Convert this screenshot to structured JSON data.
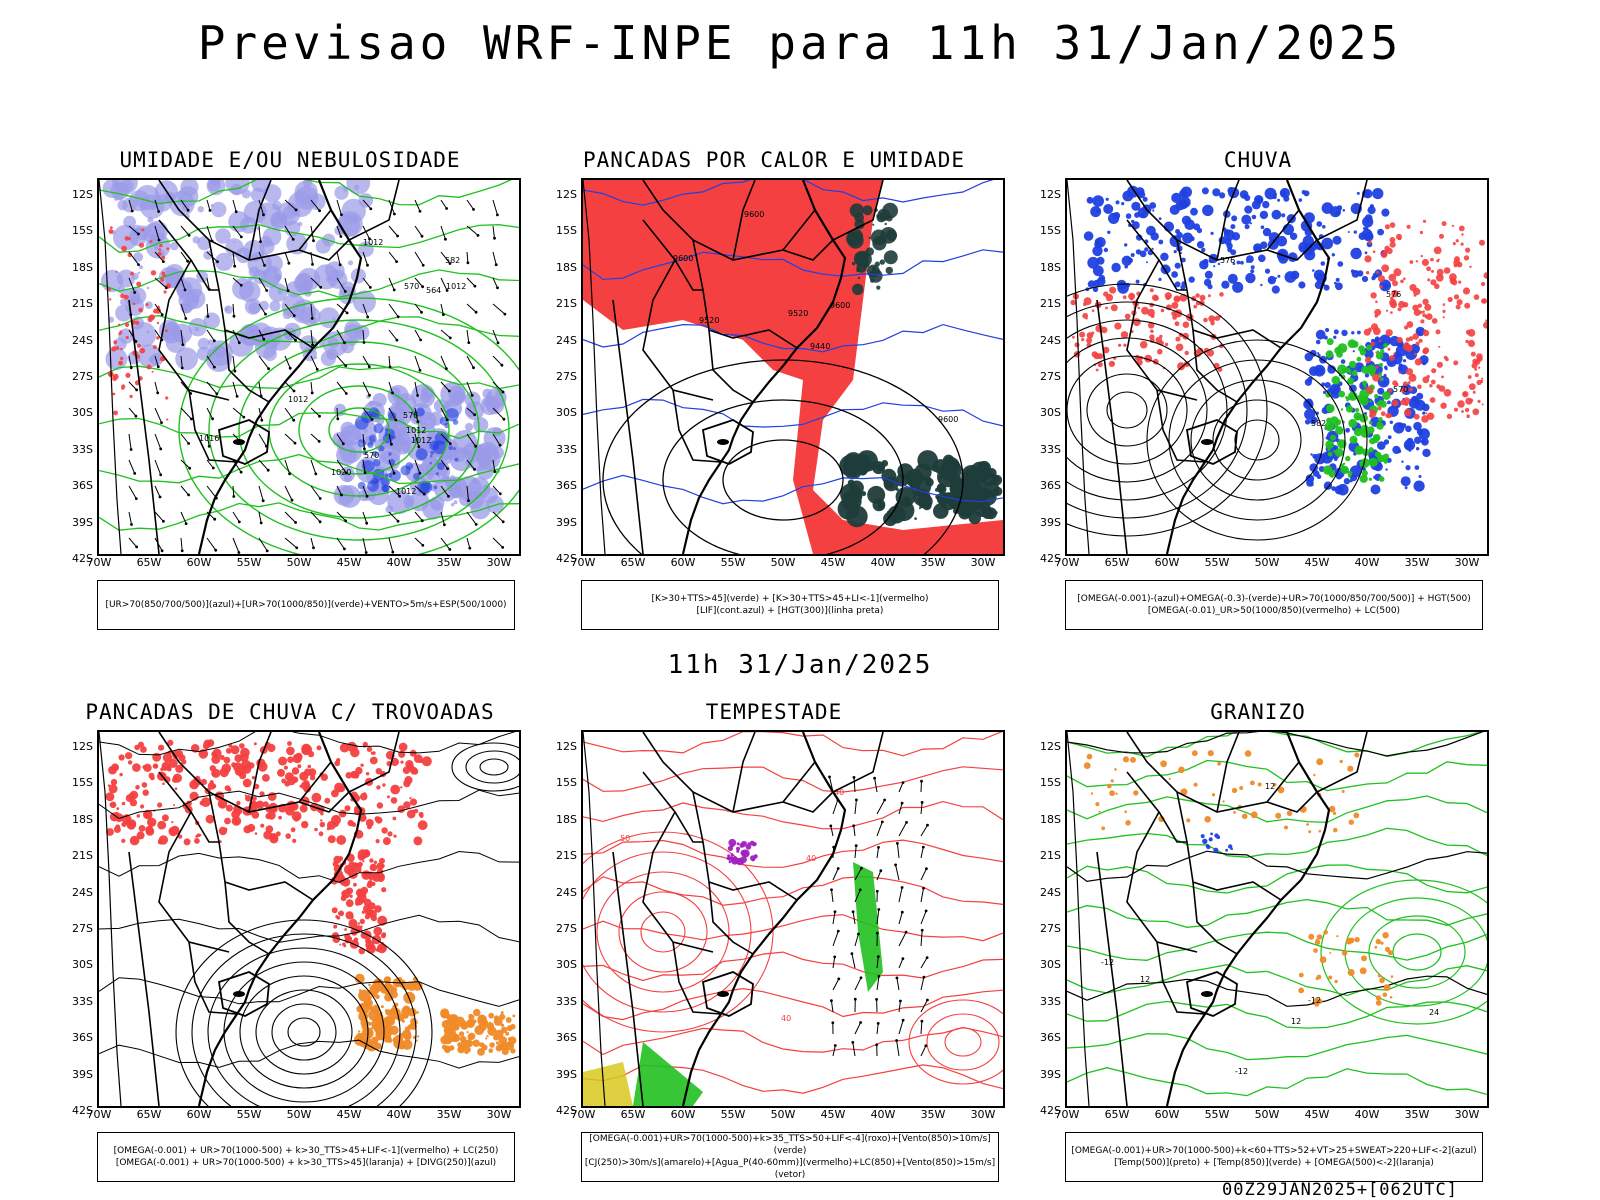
{
  "header": {
    "title": "Previsao WRF-INPE  para 11h 31/Jan/2025",
    "subtitle": "11h 31/Jan/2025",
    "footer": "00Z29JAN2025+[062UTC]"
  },
  "axes": {
    "y_ticks": [
      "12S",
      "15S",
      "18S",
      "21S",
      "24S",
      "27S",
      "30S",
      "33S",
      "36S",
      "39S",
      "42S"
    ],
    "x_ticks": [
      "70W",
      "65W",
      "60W",
      "55W",
      "50W",
      "45W",
      "40W",
      "35W",
      "30W"
    ]
  },
  "panels": [
    {
      "id": "umidade",
      "title": "UMIDADE E/OU NEBULOSIDADE",
      "legend": [
        "[UR>70(850/700/500)](azul)+[UR>70(1000/850)](verde)+VENTO>5m/s+ESP(500/1000)"
      ],
      "contour_labels": [
        "1012",
        "1012",
        "1012",
        "1012",
        "1012",
        "1012",
        "1016",
        "1020",
        "570",
        "570",
        "576",
        "582",
        "564"
      ]
    },
    {
      "id": "pancadas-calor",
      "title": "PANCADAS POR CALOR E UMIDADE",
      "legend": [
        "[K>30+TTS>45](verde) + [K>30+TTS>45+LI<-1](vermelho)",
        "[LIF](cont.azul) + [HGT(300)](linha preta)"
      ],
      "contour_labels": [
        "9600",
        "9600",
        "9600",
        "9520",
        "9440",
        "9520",
        "9600"
      ]
    },
    {
      "id": "chuva",
      "title": "CHUVA",
      "legend": [
        "[OMEGA(-0.001)-(azul)+OMEGA(-0.3)-(verde)+UR>70(1000/850/700/500)] + HGT(500)",
        "[OMEGA(-0.01)_UR>50(1000/850)(vermelho) + LC(500)"
      ],
      "contour_labels": [
        "582",
        "576",
        "576",
        "570"
      ]
    },
    {
      "id": "pancadas-trovoadas",
      "title": "PANCADAS DE CHUVA C/ TROVOADAS",
      "legend": [
        "[OMEGA(-0.001) + UR>70(1000-500) + k>30_TTS>45+LIF<-1](vermelho) + LC(250)",
        "[OMEGA(-0.001) + UR>70(1000-500) + k>30_TTS>45](laranja) + [DIVG(250)](azul)"
      ],
      "contour_labels": []
    },
    {
      "id": "tempestade",
      "title": "TEMPESTADE",
      "legend": [
        "[OMEGA(-0.001)+UR>70(1000-500)+k>35_TTS>50+LIF<-4](roxo)+[Vento(850)>10m/s](verde)",
        "[CJ(250)>30m/s](amarelo)+[Agua_P(40-60mm)](vermelho)+LC(850)+[Vento(850)>15m/s](vetor)"
      ],
      "contour_labels": [
        "40",
        "50",
        "40",
        "40"
      ]
    },
    {
      "id": "granizo",
      "title": "GRANIZO",
      "legend": [
        "[OMEGA(-0.001)+UR>70(1000-500)+k<60+TTS>52+VT>25+SWEAT>220+LIF<-2](azul)",
        "[Temp(500)](preto) + [Temp(850)](verde) + [OMEGA(500)<-2](laranja)"
      ],
      "contour_labels": [
        "-12",
        "-12",
        "-12",
        "12",
        "12",
        "24",
        "12"
      ]
    }
  ],
  "colors": {
    "red": "#f44040",
    "blue": "#2040e0",
    "green": "#20c020",
    "lavender": "#9a9ae8",
    "darkgreen": "#1e3c3a",
    "orange": "#f08a28",
    "yellow": "#d8c820",
    "purple": "#a020c0"
  }
}
